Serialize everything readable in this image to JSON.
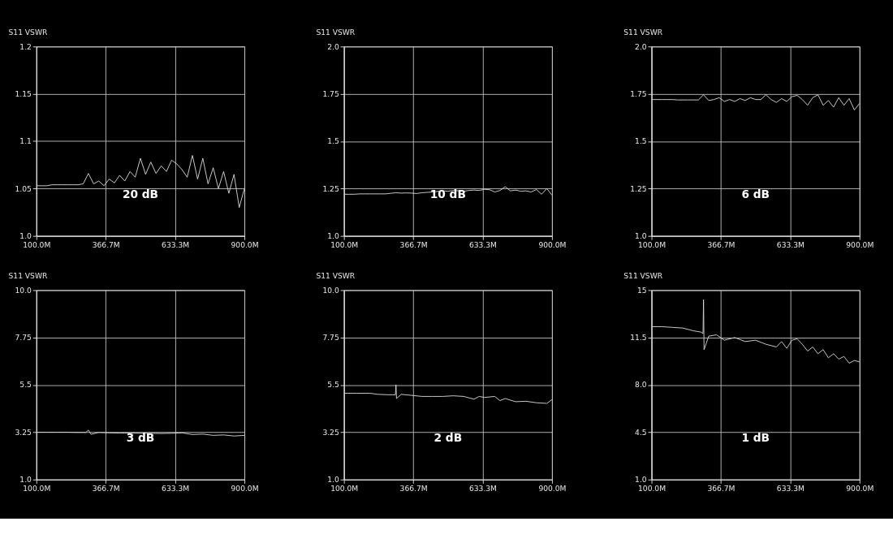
{
  "chart_data": [
    {
      "type": "line",
      "ylabel": "S11 VSWR",
      "annotations": [
        "20 dB"
      ],
      "grid": true,
      "xlim": [
        100,
        900
      ],
      "xticks": [
        {
          "value": 100,
          "label": "100.0M"
        },
        {
          "value": 366.7,
          "label": "366.7M"
        },
        {
          "value": 633.3,
          "label": "633.3M"
        },
        {
          "value": 900,
          "label": "900.0M"
        }
      ],
      "ylim": [
        1.0,
        1.2
      ],
      "yticks": [
        {
          "value": 1.0,
          "label": "1.0"
        },
        1.05,
        1.1,
        1.15,
        1.2
      ],
      "x": [
        100,
        120,
        140,
        160,
        180,
        200,
        220,
        240,
        260,
        280,
        300,
        320,
        340,
        360,
        380,
        400,
        420,
        440,
        460,
        480,
        500,
        520,
        540,
        560,
        580,
        600,
        620,
        640,
        660,
        680,
        700,
        720,
        740,
        760,
        780,
        800,
        820,
        840,
        860,
        880,
        900
      ],
      "series": [
        {
          "color": "#d9d9d9",
          "values": [
            1.053,
            1.053,
            1.053,
            1.054,
            1.054,
            1.054,
            1.054,
            1.054,
            1.054,
            1.055,
            1.066,
            1.055,
            1.058,
            1.053,
            1.06,
            1.056,
            1.064,
            1.058,
            1.068,
            1.062,
            1.082,
            1.065,
            1.078,
            1.066,
            1.074,
            1.068,
            1.08,
            1.076,
            1.07,
            1.062,
            1.085,
            1.06,
            1.082,
            1.055,
            1.072,
            1.05,
            1.068,
            1.045,
            1.065,
            1.03,
            1.05
          ]
        }
      ]
    },
    {
      "type": "line",
      "ylabel": "S11 VSWR",
      "annotations": [
        "10 dB"
      ],
      "grid": true,
      "xlim": [
        100,
        900
      ],
      "xticks": [
        {
          "value": 100,
          "label": "100.0M"
        },
        {
          "value": 366.7,
          "label": "366.7M"
        },
        {
          "value": 633.3,
          "label": "633.3M"
        },
        {
          "value": 900,
          "label": "900.0M"
        }
      ],
      "ylim": [
        1.0,
        2.0
      ],
      "yticks": [
        {
          "value": 1.0,
          "label": "1.0"
        },
        1.25,
        1.5,
        1.75,
        {
          "value": 2.0,
          "label": "2.0"
        }
      ],
      "x": [
        100,
        120,
        140,
        160,
        180,
        200,
        220,
        240,
        260,
        280,
        300,
        320,
        340,
        360,
        380,
        400,
        420,
        440,
        460,
        480,
        500,
        520,
        540,
        560,
        580,
        600,
        620,
        640,
        660,
        680,
        700,
        720,
        740,
        760,
        780,
        800,
        820,
        840,
        860,
        880,
        900
      ],
      "series": [
        {
          "color": "#d9d9d9",
          "values": [
            1.22,
            1.22,
            1.22,
            1.222,
            1.222,
            1.222,
            1.222,
            1.222,
            1.222,
            1.225,
            1.228,
            1.226,
            1.227,
            1.226,
            1.224,
            1.228,
            1.23,
            1.232,
            1.235,
            1.238,
            1.236,
            1.24,
            1.238,
            1.236,
            1.24,
            1.242,
            1.24,
            1.246,
            1.244,
            1.232,
            1.24,
            1.26,
            1.238,
            1.242,
            1.236,
            1.238,
            1.232,
            1.245,
            1.22,
            1.25,
            1.215
          ]
        }
      ]
    },
    {
      "type": "line",
      "ylabel": "S11 VSWR",
      "annotations": [
        "6 dB"
      ],
      "grid": true,
      "xlim": [
        100,
        900
      ],
      "xticks": [
        {
          "value": 100,
          "label": "100.0M"
        },
        {
          "value": 366.7,
          "label": "366.7M"
        },
        {
          "value": 633.3,
          "label": "633.3M"
        },
        {
          "value": 900,
          "label": "900.0M"
        }
      ],
      "ylim": [
        1.0,
        2.0
      ],
      "yticks": [
        {
          "value": 1.0,
          "label": "1.0"
        },
        1.25,
        1.5,
        1.75,
        {
          "value": 2.0,
          "label": "2.0"
        }
      ],
      "x": [
        100,
        120,
        140,
        160,
        180,
        200,
        220,
        240,
        260,
        280,
        300,
        320,
        340,
        360,
        380,
        400,
        420,
        440,
        460,
        480,
        500,
        520,
        540,
        560,
        580,
        600,
        620,
        640,
        660,
        680,
        700,
        720,
        740,
        760,
        780,
        800,
        820,
        840,
        860,
        880,
        900
      ],
      "series": [
        {
          "color": "#d9d9d9",
          "values": [
            1.72,
            1.72,
            1.72,
            1.72,
            1.72,
            1.718,
            1.718,
            1.718,
            1.718,
            1.718,
            1.745,
            1.715,
            1.72,
            1.73,
            1.71,
            1.72,
            1.71,
            1.725,
            1.715,
            1.73,
            1.72,
            1.72,
            1.745,
            1.72,
            1.705,
            1.725,
            1.71,
            1.735,
            1.742,
            1.72,
            1.69,
            1.73,
            1.745,
            1.69,
            1.715,
            1.68,
            1.73,
            1.69,
            1.725,
            1.665,
            1.7
          ]
        }
      ]
    },
    {
      "type": "line",
      "ylabel": "S11 VSWR",
      "annotations": [
        "3 dB"
      ],
      "grid": true,
      "xlim": [
        100,
        900
      ],
      "xticks": [
        {
          "value": 100,
          "label": "100.0M"
        },
        {
          "value": 366.7,
          "label": "366.7M"
        },
        {
          "value": 633.3,
          "label": "633.3M"
        },
        {
          "value": 900,
          "label": "900.0M"
        }
      ],
      "ylim": [
        1.0,
        10.0
      ],
      "yticks": [
        {
          "value": 1.0,
          "label": "1.0"
        },
        3.25,
        5.5,
        7.75,
        {
          "value": 10.0,
          "label": "10.0"
        }
      ],
      "x": [
        100,
        140,
        180,
        220,
        260,
        290,
        300,
        310,
        340,
        380,
        420,
        460,
        500,
        540,
        580,
        620,
        660,
        700,
        740,
        780,
        820,
        860,
        900
      ],
      "series": [
        {
          "color": "#d9d9d9",
          "values": [
            3.25,
            3.25,
            3.25,
            3.25,
            3.24,
            3.24,
            3.35,
            3.15,
            3.24,
            3.22,
            3.21,
            3.21,
            3.2,
            3.2,
            3.19,
            3.2,
            3.22,
            3.14,
            3.16,
            3.1,
            3.12,
            3.07,
            3.1
          ]
        }
      ]
    },
    {
      "type": "line",
      "ylabel": "S11 VSWR",
      "annotations": [
        "2 dB"
      ],
      "grid": true,
      "xlim": [
        100,
        900
      ],
      "xticks": [
        {
          "value": 100,
          "label": "100.0M"
        },
        {
          "value": 366.7,
          "label": "366.7M"
        },
        {
          "value": 633.3,
          "label": "633.3M"
        },
        {
          "value": 900,
          "label": "900.0M"
        }
      ],
      "ylim": [
        1.0,
        10.0
      ],
      "yticks": [
        {
          "value": 1.0,
          "label": "1.0"
        },
        3.25,
        5.5,
        7.75,
        {
          "value": 10.0,
          "label": "10.0"
        }
      ],
      "x": [
        100,
        150,
        200,
        230,
        270,
        298,
        300,
        302,
        320,
        360,
        400,
        440,
        480,
        520,
        560,
        600,
        620,
        640,
        680,
        700,
        720,
        760,
        800,
        840,
        880,
        900
      ],
      "series": [
        {
          "color": "#d9d9d9",
          "values": [
            5.1,
            5.1,
            5.1,
            5.05,
            5.03,
            5.03,
            5.5,
            4.85,
            5.05,
            5.0,
            4.95,
            4.95,
            4.95,
            4.98,
            4.95,
            4.82,
            4.95,
            4.9,
            4.95,
            4.75,
            4.85,
            4.7,
            4.72,
            4.65,
            4.62,
            4.8
          ]
        }
      ]
    },
    {
      "type": "line",
      "ylabel": "S11 VSWR",
      "annotations": [
        "1 dB"
      ],
      "grid": true,
      "xlim": [
        100,
        900
      ],
      "xticks": [
        {
          "value": 100,
          "label": "100.0M"
        },
        {
          "value": 366.7,
          "label": "366.7M"
        },
        {
          "value": 633.3,
          "label": "633.3M"
        },
        {
          "value": 900,
          "label": "900.0M"
        }
      ],
      "ylim": [
        1.0,
        15
      ],
      "yticks": [
        {
          "value": 1.0,
          "label": "1.0"
        },
        4.5,
        {
          "value": 8.0,
          "label": "8.0"
        },
        11.5,
        15
      ],
      "x": [
        100,
        140,
        180,
        220,
        260,
        290,
        298,
        300,
        302,
        320,
        350,
        380,
        420,
        460,
        500,
        540,
        580,
        600,
        620,
        640,
        660,
        680,
        700,
        720,
        740,
        760,
        780,
        800,
        820,
        840,
        860,
        880,
        900
      ],
      "series": [
        {
          "color": "#d9d9d9",
          "values": [
            12.3,
            12.3,
            12.25,
            12.2,
            12.0,
            11.9,
            11.8,
            14.3,
            10.6,
            11.6,
            11.7,
            11.3,
            11.5,
            11.2,
            11.3,
            11.0,
            10.8,
            11.2,
            10.7,
            11.3,
            11.4,
            11.0,
            10.5,
            10.8,
            10.3,
            10.6,
            10.0,
            10.3,
            9.9,
            10.1,
            9.6,
            9.8,
            9.7
          ]
        }
      ]
    }
  ]
}
